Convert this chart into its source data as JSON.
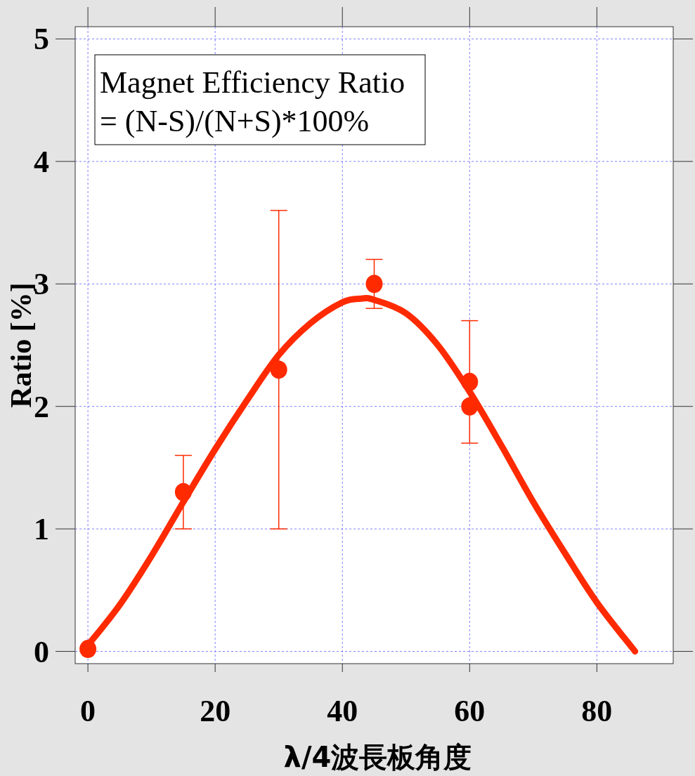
{
  "chart_data": {
    "type": "scatter",
    "xlabel": "λ/4波長板角度",
    "ylabel": "Ratio [%]",
    "annotations": [
      "Magnet Efficiency Ratio",
      "= (N-S)/(N+S)*100%"
    ],
    "xlim": [
      -2,
      92
    ],
    "ylim": [
      -0.1,
      5.1
    ],
    "xticks": [
      0,
      20,
      40,
      60,
      80
    ],
    "yticks": [
      0,
      1,
      2,
      3,
      4,
      5
    ],
    "grid": true,
    "marker": "circle",
    "series": [
      {
        "type": "scatter",
        "color": "#ff2a00",
        "x": [
          0,
          15,
          30,
          45,
          60,
          60
        ],
        "values": [
          0.02,
          1.3,
          2.3,
          3.0,
          2.2,
          2.0
        ],
        "errors": [
          null,
          [
            1.0,
            1.6
          ],
          [
            1.0,
            3.6
          ],
          [
            2.8,
            3.2
          ],
          [
            1.7,
            2.7
          ],
          null
        ]
      },
      {
        "type": "line",
        "color": "#ff2a00",
        "marker": "none",
        "x": [
          0,
          5,
          10,
          15,
          20,
          25,
          30,
          35,
          40,
          43,
          45,
          50,
          55,
          60,
          65,
          70,
          75,
          80,
          86
        ],
        "values": [
          0.05,
          0.38,
          0.78,
          1.22,
          1.65,
          2.05,
          2.42,
          2.68,
          2.85,
          2.88,
          2.87,
          2.76,
          2.5,
          2.12,
          1.68,
          1.22,
          0.8,
          0.4,
          0.0
        ]
      }
    ]
  }
}
